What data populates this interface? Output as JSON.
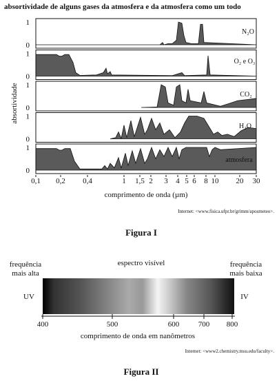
{
  "figure_1": {
    "title": "absortividade de alguns gases da atmosfera e da atmosfera como um todo",
    "y_axis_label": "absortividade",
    "panels": [
      {
        "label": "N₂O",
        "ticks": [
          "1",
          "0"
        ]
      },
      {
        "label": "O₂ e O₃",
        "ticks": [
          "1",
          "0"
        ]
      },
      {
        "label": "CO₂",
        "ticks": [
          "1",
          "0"
        ]
      },
      {
        "label": "H₂O",
        "ticks": [
          "1",
          "0"
        ]
      },
      {
        "label": "atmosfera",
        "ticks": [
          "1",
          "0"
        ]
      }
    ],
    "x_tick_labels": [
      "0,1",
      "0,2",
      "0,4",
      "1",
      "1,5",
      "2",
      "3",
      "4",
      "5",
      "6",
      "8",
      "10",
      "20",
      "30"
    ],
    "x_axis_label": "comprimento de onda (µm)",
    "source": "Internet: <www.fisica.ufpr.br/grimm/aposmeteo>.",
    "caption": "Figura I"
  },
  "figure_2": {
    "title": "espectro visível",
    "left_label": [
      "frequência",
      "mais alta"
    ],
    "right_label": [
      "frequência",
      "mais baixa"
    ],
    "left_end": "UV",
    "right_end": "IV",
    "x_tick_labels": [
      "400",
      "500",
      "600",
      "700",
      "800"
    ],
    "x_axis_label": "comprimento de onda em nanômetros",
    "source": "Internet: <www2.chemistry.msu.edu/faculty>.",
    "caption": "Figura II"
  }
}
